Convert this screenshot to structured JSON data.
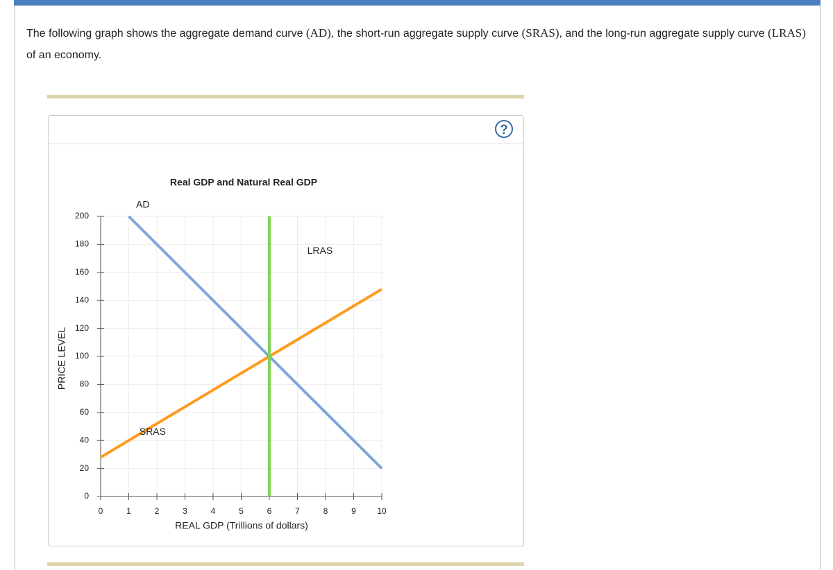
{
  "intro": [
    "The following graph shows the aggregate demand curve ",
    "(AD)",
    ", the short-run aggregate supply curve ",
    "(SRAS)",
    ", and the long-run aggregate supply curve ",
    "(LRAS)",
    " of an economy."
  ],
  "help_icon": "?",
  "chart_data": {
    "type": "line",
    "title": "Real GDP and Natural Real GDP",
    "x_label": "REAL GDP (Trillions of dollars)",
    "y_label": "PRICE LEVEL",
    "xlim": [
      0,
      10
    ],
    "ylim": [
      0,
      200
    ],
    "xticks": [
      0,
      1,
      2,
      3,
      4,
      5,
      6,
      7,
      8,
      9,
      10
    ],
    "yticks": [
      0,
      20,
      40,
      60,
      80,
      100,
      120,
      140,
      160,
      180,
      200
    ],
    "grid": true,
    "series": [
      {
        "name": "AD",
        "color": "#7fa7d6",
        "x": [
          1,
          10
        ],
        "values": [
          200,
          20
        ]
      },
      {
        "name": "SRAS",
        "color": "#ff9a1f",
        "x": [
          0,
          10
        ],
        "values": [
          28,
          148
        ]
      },
      {
        "name": "LRAS",
        "color": "#7ed35a",
        "x": [
          6,
          6
        ],
        "values": [
          0,
          200
        ]
      }
    ]
  }
}
